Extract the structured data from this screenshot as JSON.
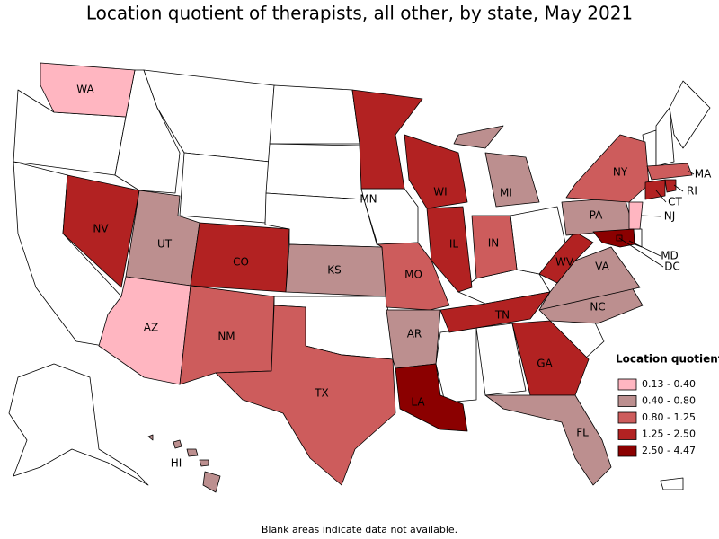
{
  "map": {
    "title": "Location quotient of therapists, all other, by state, May 2021",
    "footnote": "Blank areas indicate data not available.",
    "legend": {
      "title": "Location quotient",
      "items": [
        {
          "label": "0.13 - 0.40",
          "color": "#ffb6c1"
        },
        {
          "label": "0.40 - 0.80",
          "color": "#bc8f8f"
        },
        {
          "label": "0.80 - 1.25",
          "color": "#cd5c5c"
        },
        {
          "label": "1.25 - 2.50",
          "color": "#b22222"
        },
        {
          "label": "2.50 - 4.47",
          "color": "#8b0000"
        }
      ]
    },
    "states": [
      {
        "label": "WA",
        "color": "#ffb6c1"
      },
      {
        "label": "NV",
        "color": "#b22222"
      },
      {
        "label": "UT",
        "color": "#bc8f8f"
      },
      {
        "label": "AZ",
        "color": "#ffb6c1"
      },
      {
        "label": "CO",
        "color": "#b22222"
      },
      {
        "label": "NM",
        "color": "#cd5c5c"
      },
      {
        "label": "KS",
        "color": "#bc8f8f"
      },
      {
        "label": "TX",
        "color": "#cd5c5c"
      },
      {
        "label": "MN",
        "color": "#b22222"
      },
      {
        "label": "MO",
        "color": "#cd5c5c"
      },
      {
        "label": "AR",
        "color": "#bc8f8f"
      },
      {
        "label": "LA",
        "color": "#8b0000"
      },
      {
        "label": "WI",
        "color": "#b22222"
      },
      {
        "label": "IL",
        "color": "#b22222"
      },
      {
        "label": "IN",
        "color": "#cd5c5c"
      },
      {
        "label": "MI",
        "color": "#bc8f8f"
      },
      {
        "label": "TN",
        "color": "#b22222"
      },
      {
        "label": "GA",
        "color": "#b22222"
      },
      {
        "label": "FL",
        "color": "#bc8f8f"
      },
      {
        "label": "NC",
        "color": "#bc8f8f"
      },
      {
        "label": "VA",
        "color": "#bc8f8f"
      },
      {
        "label": "WV",
        "color": "#b22222"
      },
      {
        "label": "PA",
        "color": "#bc8f8f"
      },
      {
        "label": "NY",
        "color": "#cd5c5c"
      },
      {
        "label": "NJ",
        "color": "#ffb6c1"
      },
      {
        "label": "MD",
        "color": "#8b0000"
      },
      {
        "label": "DC",
        "color": "#8b0000"
      },
      {
        "label": "CT",
        "color": "#b22222"
      },
      {
        "label": "RI",
        "color": "#b22222"
      },
      {
        "label": "MA",
        "color": "#cd5c5c"
      },
      {
        "label": "HI",
        "color": "#bc8f8f"
      }
    ]
  }
}
